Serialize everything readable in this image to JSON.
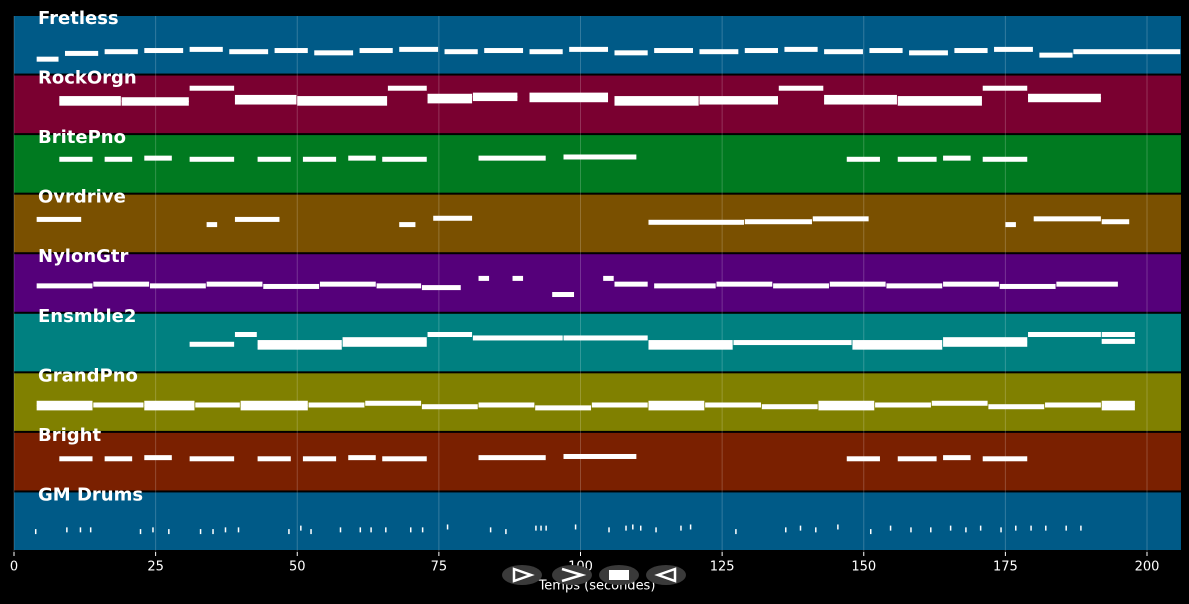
{
  "chart_data": {
    "type": "pianoroll",
    "xlabel": "Temps (secondes)",
    "xlim": [
      0,
      206
    ],
    "xticks": [
      0,
      25,
      50,
      75,
      100,
      125,
      150,
      175,
      200
    ],
    "grid": true,
    "tracks": [
      {
        "name": "Fretless",
        "color": "#005a87",
        "notes": [
          [
            4,
            8,
            0.75
          ],
          [
            9,
            15,
            0.65
          ],
          [
            16,
            22,
            0.62
          ],
          [
            23,
            30,
            0.6
          ],
          [
            31,
            37,
            0.58
          ],
          [
            38,
            45,
            0.62
          ],
          [
            46,
            52,
            0.6
          ],
          [
            53,
            60,
            0.64
          ],
          [
            61,
            67,
            0.6
          ],
          [
            68,
            75,
            0.58
          ],
          [
            76,
            82,
            0.62
          ],
          [
            83,
            90,
            0.6
          ],
          [
            91,
            97,
            0.62
          ],
          [
            98,
            105,
            0.58
          ],
          [
            106,
            112,
            0.64
          ],
          [
            113,
            120,
            0.6
          ],
          [
            121,
            128,
            0.62
          ],
          [
            129,
            135,
            0.6
          ],
          [
            136,
            142,
            0.58
          ],
          [
            143,
            150,
            0.62
          ],
          [
            151,
            157,
            0.6
          ],
          [
            158,
            165,
            0.64
          ],
          [
            166,
            172,
            0.6
          ],
          [
            173,
            180,
            0.58
          ],
          [
            181,
            187,
            0.68
          ],
          [
            187,
            206,
            0.62
          ]
        ]
      },
      {
        "name": "RockOrgn",
        "color": "#7a0030",
        "notes": [
          [
            31,
            39,
            0.22
          ],
          [
            66,
            73,
            0.22
          ],
          [
            135,
            143,
            0.22
          ],
          [
            171,
            179,
            0.22
          ],
          [
            8,
            19,
            0.4
          ],
          [
            8,
            19,
            0.48
          ],
          [
            19,
            31,
            0.42
          ],
          [
            19,
            31,
            0.48
          ],
          [
            39,
            50,
            0.38
          ],
          [
            39,
            50,
            0.46
          ],
          [
            50,
            66,
            0.4
          ],
          [
            50,
            66,
            0.48
          ],
          [
            73,
            81,
            0.36
          ],
          [
            73,
            81,
            0.44
          ],
          [
            81,
            89,
            0.34
          ],
          [
            81,
            89,
            0.4
          ],
          [
            91,
            105,
            0.34
          ],
          [
            91,
            105,
            0.42
          ],
          [
            106,
            121,
            0.4
          ],
          [
            106,
            121,
            0.48
          ],
          [
            121,
            135,
            0.4
          ],
          [
            121,
            135,
            0.46
          ],
          [
            143,
            156,
            0.38
          ],
          [
            143,
            156,
            0.46
          ],
          [
            156,
            171,
            0.4
          ],
          [
            156,
            171,
            0.48
          ],
          [
            179,
            192,
            0.36
          ],
          [
            179,
            192,
            0.42
          ]
        ]
      },
      {
        "name": "BritePno",
        "color": "#007a20",
        "notes": [
          [
            8,
            14,
            0.42
          ],
          [
            16,
            21,
            0.42
          ],
          [
            23,
            28,
            0.4
          ],
          [
            31,
            39,
            0.42
          ],
          [
            43,
            49,
            0.42
          ],
          [
            51,
            57,
            0.42
          ],
          [
            59,
            64,
            0.4
          ],
          [
            65,
            73,
            0.42
          ],
          [
            82,
            94,
            0.4
          ],
          [
            97,
            110,
            0.38
          ],
          [
            147,
            153,
            0.42
          ],
          [
            156,
            163,
            0.42
          ],
          [
            164,
            169,
            0.4
          ],
          [
            171,
            179,
            0.42
          ]
        ]
      },
      {
        "name": "Ovrdrive",
        "color": "#7a5000",
        "notes": [
          [
            4,
            12,
            0.43
          ],
          [
            34,
            36,
            0.52
          ],
          [
            39,
            47,
            0.43
          ],
          [
            68,
            71,
            0.52
          ],
          [
            74,
            81,
            0.41
          ],
          [
            112,
            129,
            0.48
          ],
          [
            129,
            141,
            0.47
          ],
          [
            141,
            151,
            0.42
          ],
          [
            175,
            177,
            0.52
          ],
          [
            180,
            192,
            0.42
          ],
          [
            192,
            197,
            0.47
          ]
        ]
      },
      {
        "name": "NylonGtr",
        "color": "#55007a",
        "notes": [
          [
            4,
            14,
            0.55
          ],
          [
            14,
            24,
            0.52
          ],
          [
            24,
            34,
            0.55
          ],
          [
            34,
            44,
            0.52
          ],
          [
            44,
            54,
            0.56
          ],
          [
            54,
            64,
            0.52
          ],
          [
            64,
            72,
            0.55
          ],
          [
            72,
            79,
            0.58
          ],
          [
            82,
            84,
            0.42
          ],
          [
            88,
            90,
            0.42
          ],
          [
            95,
            99,
            0.7
          ],
          [
            104,
            106,
            0.42
          ],
          [
            106,
            112,
            0.52
          ],
          [
            113,
            124,
            0.55
          ],
          [
            124,
            134,
            0.52
          ],
          [
            134,
            144,
            0.55
          ],
          [
            144,
            154,
            0.52
          ],
          [
            154,
            164,
            0.55
          ],
          [
            164,
            174,
            0.52
          ],
          [
            174,
            184,
            0.56
          ],
          [
            184,
            195,
            0.52
          ]
        ]
      },
      {
        "name": "Ensmble2",
        "color": "#008080",
        "notes": [
          [
            31,
            39,
            0.53
          ],
          [
            39,
            43,
            0.36
          ],
          [
            43,
            58,
            0.5
          ],
          [
            43,
            58,
            0.58
          ],
          [
            58,
            73,
            0.45
          ],
          [
            58,
            73,
            0.53
          ],
          [
            73,
            81,
            0.36
          ],
          [
            81,
            97,
            0.42
          ],
          [
            97,
            112,
            0.42
          ],
          [
            112,
            127,
            0.5
          ],
          [
            112,
            127,
            0.58
          ],
          [
            127,
            148,
            0.5
          ],
          [
            148,
            164,
            0.5
          ],
          [
            148,
            164,
            0.58
          ],
          [
            164,
            179,
            0.45
          ],
          [
            164,
            179,
            0.53
          ],
          [
            179,
            192,
            0.36
          ],
          [
            192,
            198,
            0.36
          ],
          [
            192,
            198,
            0.48
          ]
        ]
      },
      {
        "name": "GrandPno",
        "color": "#808000",
        "notes": [
          [
            4,
            14,
            0.52
          ],
          [
            4,
            14,
            0.6
          ],
          [
            14,
            23,
            0.55
          ],
          [
            23,
            32,
            0.52
          ],
          [
            23,
            32,
            0.6
          ],
          [
            32,
            40,
            0.55
          ],
          [
            40,
            52,
            0.52
          ],
          [
            40,
            52,
            0.6
          ],
          [
            52,
            62,
            0.55
          ],
          [
            62,
            72,
            0.52
          ],
          [
            72,
            82,
            0.58
          ],
          [
            82,
            92,
            0.55
          ],
          [
            92,
            102,
            0.6
          ],
          [
            102,
            112,
            0.55
          ],
          [
            112,
            122,
            0.52
          ],
          [
            112,
            122,
            0.6
          ],
          [
            122,
            132,
            0.55
          ],
          [
            132,
            142,
            0.58
          ],
          [
            142,
            152,
            0.52
          ],
          [
            142,
            152,
            0.6
          ],
          [
            152,
            162,
            0.55
          ],
          [
            162,
            172,
            0.52
          ],
          [
            172,
            182,
            0.58
          ],
          [
            182,
            192,
            0.55
          ],
          [
            192,
            198,
            0.52
          ],
          [
            192,
            198,
            0.6
          ]
        ]
      },
      {
        "name": "Bright",
        "color": "#7a2000",
        "notes": [
          [
            8,
            14,
            0.45
          ],
          [
            16,
            21,
            0.45
          ],
          [
            23,
            28,
            0.43
          ],
          [
            31,
            39,
            0.45
          ],
          [
            43,
            49,
            0.45
          ],
          [
            51,
            57,
            0.45
          ],
          [
            59,
            64,
            0.43
          ],
          [
            65,
            73,
            0.45
          ],
          [
            82,
            94,
            0.43
          ],
          [
            97,
            110,
            0.41
          ],
          [
            147,
            153,
            0.45
          ],
          [
            156,
            163,
            0.45
          ],
          [
            164,
            169,
            0.43
          ],
          [
            171,
            179,
            0.45
          ]
        ]
      },
      {
        "name": "GM Drums",
        "color": "#005a87",
        "notes": [
          [
            3.7,
            4,
            0.68
          ],
          [
            9.2,
            9.5,
            0.65
          ],
          [
            11.6,
            11.9,
            0.65
          ],
          [
            13.4,
            13.7,
            0.65
          ],
          [
            22.2,
            22.5,
            0.68
          ],
          [
            24.4,
            24.7,
            0.65
          ],
          [
            27.2,
            27.5,
            0.68
          ],
          [
            32.8,
            33.1,
            0.68
          ],
          [
            35,
            35.3,
            0.68
          ],
          [
            37.2,
            37.5,
            0.65
          ],
          [
            39.5,
            39.8,
            0.65
          ],
          [
            48.4,
            48.7,
            0.68
          ],
          [
            50.5,
            50.8,
            0.62
          ],
          [
            52.3,
            52.6,
            0.68
          ],
          [
            57.5,
            57.8,
            0.65
          ],
          [
            61,
            61.3,
            0.65
          ],
          [
            62.9,
            63.2,
            0.65
          ],
          [
            65.5,
            65.8,
            0.65
          ],
          [
            69.9,
            70.2,
            0.65
          ],
          [
            72,
            72.3,
            0.65
          ],
          [
            76.4,
            76.7,
            0.6
          ],
          [
            84,
            84.3,
            0.65
          ],
          [
            86.7,
            87,
            0.68
          ],
          [
            92,
            92.3,
            0.62
          ],
          [
            92.9,
            93.2,
            0.62
          ],
          [
            93.8,
            94.1,
            0.62
          ],
          [
            99,
            99.3,
            0.6
          ],
          [
            104.9,
            105.2,
            0.65
          ],
          [
            107.9,
            108.2,
            0.62
          ],
          [
            109.1,
            109.4,
            0.6
          ],
          [
            110.5,
            110.8,
            0.62
          ],
          [
            113.2,
            113.5,
            0.65
          ],
          [
            117.6,
            117.9,
            0.62
          ],
          [
            119.3,
            119.6,
            0.6
          ],
          [
            127.3,
            127.6,
            0.68
          ],
          [
            136.1,
            136.4,
            0.65
          ],
          [
            138.7,
            139,
            0.62
          ],
          [
            141.4,
            141.7,
            0.65
          ],
          [
            145.3,
            145.6,
            0.6
          ],
          [
            151.1,
            151.4,
            0.68
          ],
          [
            154.6,
            154.9,
            0.62
          ],
          [
            158.2,
            158.5,
            0.65
          ],
          [
            161.7,
            162,
            0.65
          ],
          [
            165.2,
            165.5,
            0.62
          ],
          [
            167.9,
            168.2,
            0.65
          ],
          [
            170.5,
            170.8,
            0.62
          ],
          [
            174.1,
            174.4,
            0.65
          ],
          [
            176.7,
            177,
            0.62
          ],
          [
            179.4,
            179.7,
            0.62
          ],
          [
            182,
            182.3,
            0.62
          ],
          [
            185.6,
            185.9,
            0.62
          ],
          [
            188.2,
            188.5,
            0.62
          ]
        ]
      }
    ]
  }
}
